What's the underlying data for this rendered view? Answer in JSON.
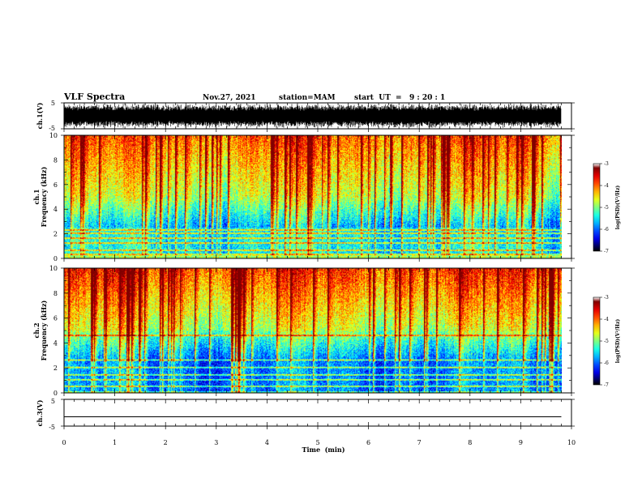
{
  "header": {
    "title": "VLF Spectra",
    "date": "Nov.27, 2021",
    "station": "station=MAM",
    "start": "start  UT  =   9 : 20 : 1"
  },
  "colors": {
    "spectrum_low": "#000080",
    "spectrum_high": "#d00000",
    "trace": "#000000"
  },
  "chart_data": [
    {
      "type": "line",
      "id": "ch1-waveform",
      "ylabel": "ch.1(V)",
      "ylim": [
        -5,
        5
      ],
      "yticks": [
        "5",
        "-5"
      ],
      "description_values": "dense oscillating waveform, approx amplitude -4 to 4 V"
    },
    {
      "type": "heatmap",
      "id": "ch1-spectrogram",
      "ylabel_line1": "ch.1",
      "ylabel_line2": "Frequency (kHz)",
      "ylim": [
        0,
        10
      ],
      "yticks": [
        "0",
        "2",
        "4",
        "6",
        "8",
        "10"
      ],
      "colorbar": {
        "label": "log(PSD)(V²/Hz)",
        "range": [
          -7,
          -3
        ],
        "ticks": [
          "-3",
          "-4",
          "-5",
          "-6",
          "-7"
        ]
      },
      "bands_khz": [
        0.3,
        0.6,
        1.2,
        1.6,
        2.0,
        2.3
      ]
    },
    {
      "type": "heatmap",
      "id": "ch2-spectrogram",
      "ylabel_line1": "ch.2",
      "ylabel_line2": "Frequency (kHz)",
      "ylim": [
        0,
        10
      ],
      "yticks": [
        "0",
        "2",
        "4",
        "6",
        "8",
        "10"
      ],
      "colorbar": {
        "label": "log(PSD)(V²/Hz)",
        "range": [
          -7,
          -3
        ],
        "ticks": [
          "-3",
          "-4",
          "-5",
          "-6",
          "-7"
        ]
      },
      "bands_khz": [
        0.5,
        1.0,
        1.4,
        2.0,
        2.6,
        4.6
      ]
    },
    {
      "type": "line",
      "id": "ch3-waveform",
      "ylabel": "ch.3(V)",
      "ylim": [
        -5,
        5
      ],
      "yticks": [
        "5",
        "-5"
      ],
      "x": [
        0,
        9.8
      ],
      "y": [
        -1.5,
        -1.5
      ]
    }
  ],
  "xaxis": {
    "label": "Time  (min)",
    "range": [
      0,
      10
    ],
    "ticks": [
      "0",
      "1",
      "2",
      "3",
      "4",
      "5",
      "6",
      "7",
      "8",
      "9",
      "10"
    ]
  }
}
